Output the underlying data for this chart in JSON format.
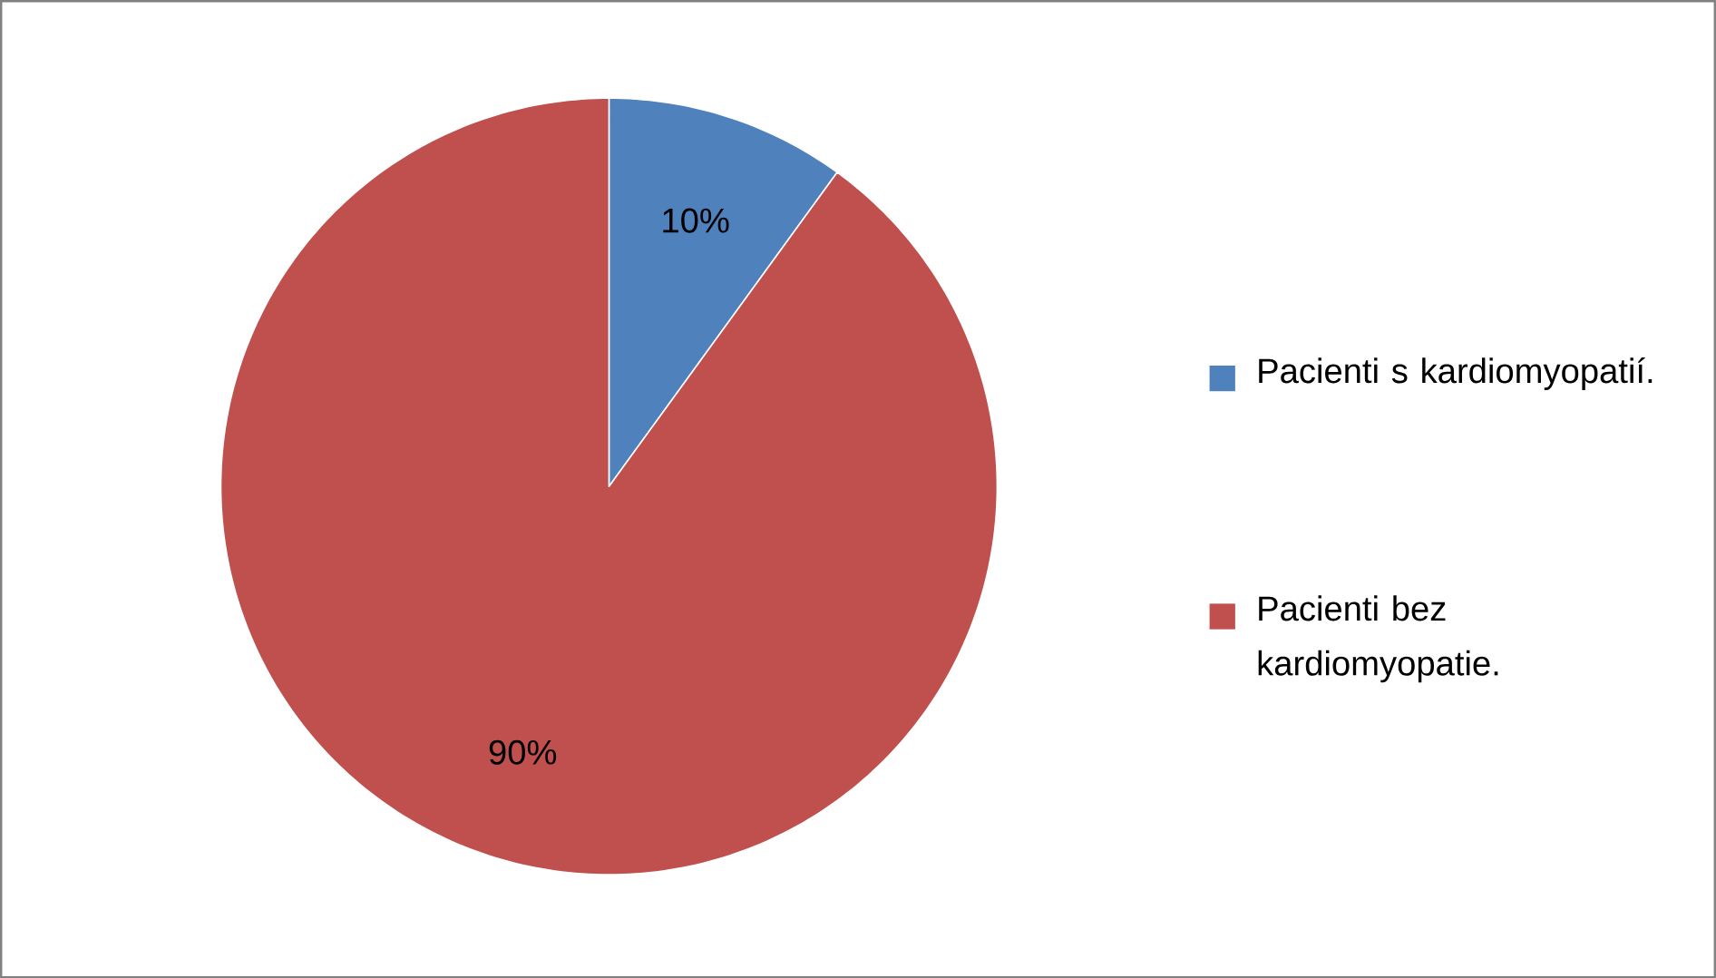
{
  "chart_data": {
    "type": "pie",
    "categories": [
      "Pacienti s kardiomyopatií.",
      "Pacienti bez kardiomyopatie."
    ],
    "values": [
      10,
      90
    ],
    "colors": [
      "#4f81bd",
      "#c0504d"
    ],
    "value_labels": [
      "10%",
      "90%"
    ],
    "legend": "right"
  }
}
